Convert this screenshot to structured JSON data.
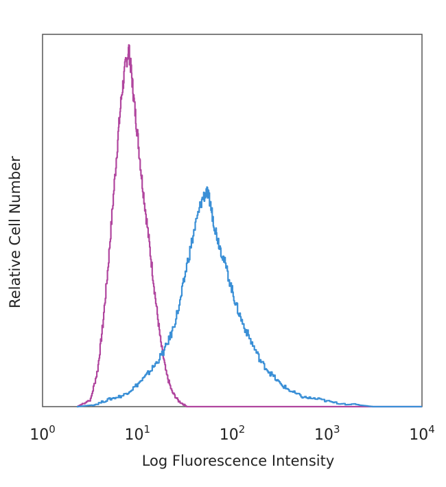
{
  "chart_data": {
    "type": "line",
    "title": "",
    "xlabel": "Log Fluorescence Intensity",
    "ylabel": "Relative Cell Number",
    "x_scale": "log",
    "xlim": [
      1,
      10000
    ],
    "ylim": [
      0,
      1
    ],
    "grid": false,
    "x_ticks": [
      {
        "value": 1,
        "base": "10",
        "exp": "0"
      },
      {
        "value": 10,
        "base": "10",
        "exp": "1"
      },
      {
        "value": 100,
        "base": "10",
        "exp": "2"
      },
      {
        "value": 1000,
        "base": "10",
        "exp": "3"
      },
      {
        "value": 10000,
        "base": "10",
        "exp": "4"
      }
    ],
    "series": [
      {
        "color": "#b0459e",
        "x": [
          2.3,
          3.2,
          3.8,
          4.3,
          4.9,
          5.5,
          6.2,
          6.8,
          7.5,
          8.1,
          8.6,
          9.2,
          10.0,
          11.0,
          12.2,
          13.8,
          15.6,
          17.6,
          20.0,
          23.0,
          27.0,
          33.0,
          40.0,
          55.0,
          85.0,
          130.0,
          250.0,
          500.0,
          1000.0,
          2000.0,
          5000.0,
          10000.0
        ],
        "y": [
          0.0,
          0.02,
          0.1,
          0.22,
          0.38,
          0.55,
          0.72,
          0.84,
          0.92,
          0.96,
          0.9,
          0.82,
          0.73,
          0.62,
          0.52,
          0.4,
          0.28,
          0.17,
          0.09,
          0.04,
          0.015,
          0.0,
          0.0,
          0.0,
          0.0,
          0.0,
          0.0,
          0.0,
          0.0,
          0.0,
          0.0,
          0.0
        ]
      },
      {
        "color": "#3a8fd6",
        "x": [
          2.3,
          3.5,
          5.0,
          7.0,
          9.0,
          12.0,
          15.0,
          19.0,
          23.0,
          28.0,
          33.0,
          40.0,
          47.0,
          53.0,
          58.0,
          63.0,
          70.0,
          80.0,
          95.0,
          110.0,
          130.0,
          160.0,
          200.0,
          250.0,
          320.0,
          420.0,
          560.0,
          800.0,
          1200.0,
          2000.0,
          3000.0,
          10000.0
        ],
        "y": [
          0.0,
          0.005,
          0.02,
          0.03,
          0.05,
          0.08,
          0.11,
          0.15,
          0.2,
          0.28,
          0.38,
          0.48,
          0.55,
          0.58,
          0.55,
          0.5,
          0.45,
          0.4,
          0.33,
          0.27,
          0.22,
          0.17,
          0.12,
          0.09,
          0.06,
          0.04,
          0.025,
          0.02,
          0.01,
          0.005,
          0.0,
          0.0
        ]
      }
    ]
  }
}
